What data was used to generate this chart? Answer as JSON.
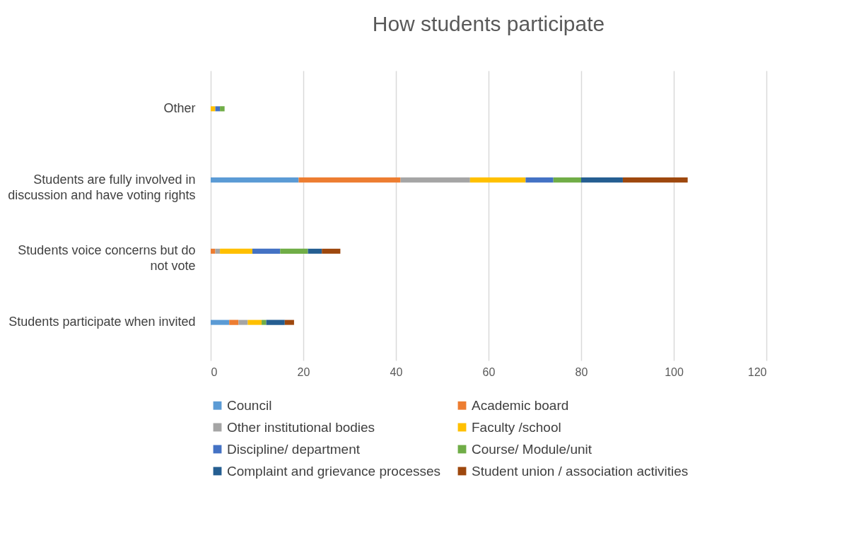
{
  "chart_data": {
    "type": "bar",
    "orientation": "horizontal",
    "stacked": true,
    "title": "How students participate",
    "categories": [
      "Other",
      "Students are fully involved in discussion and have voting rights",
      "Students voice concerns but do not vote",
      "Students participate when invited"
    ],
    "series": [
      {
        "name": "Council",
        "color": "#5b9bd5",
        "values": [
          0,
          19,
          0,
          4
        ]
      },
      {
        "name": "Academic board",
        "color": "#ed7d31",
        "values": [
          0,
          22,
          1,
          2
        ]
      },
      {
        "name": "Other institutional bodies",
        "color": "#a5a5a5",
        "values": [
          0,
          15,
          1,
          2
        ]
      },
      {
        "name": "Faculty /school",
        "color": "#ffc000",
        "values": [
          1,
          12,
          7,
          3
        ]
      },
      {
        "name": "Discipline/ department",
        "color": "#4472c4",
        "values": [
          1,
          6,
          6,
          0
        ]
      },
      {
        "name": "Course/ Module/unit",
        "color": "#70ad47",
        "values": [
          1,
          6,
          6,
          1
        ]
      },
      {
        "name": "Complaint and grievance processes",
        "color": "#255e91",
        "values": [
          0,
          9,
          3,
          4
        ]
      },
      {
        "name": "Student union / association activities",
        "color": "#9e480e",
        "values": [
          0,
          14,
          4,
          2
        ]
      }
    ],
    "xlim": [
      0,
      120
    ],
    "xticks": [
      0,
      20,
      40,
      60,
      80,
      100,
      120
    ],
    "grid": "x",
    "legend": "bottom"
  }
}
